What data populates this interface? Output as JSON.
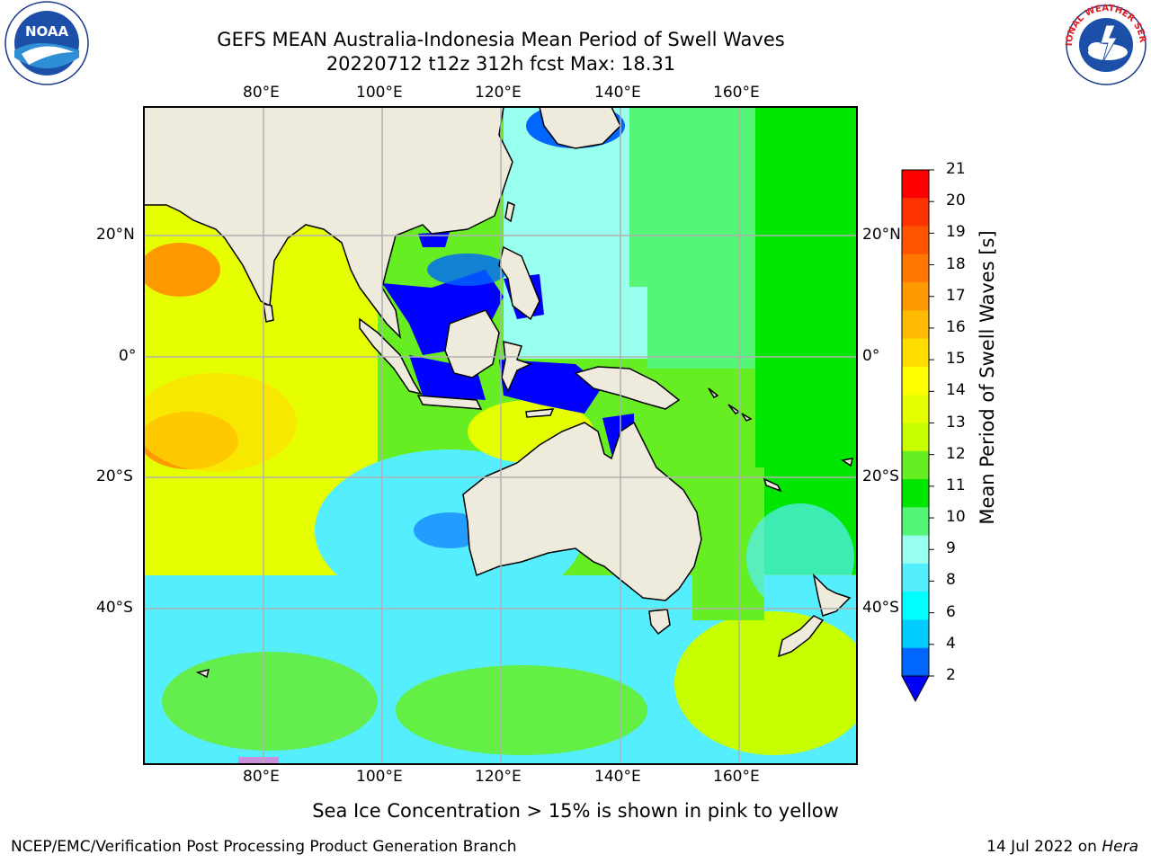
{
  "title": {
    "line1": "GEFS MEAN Australia-Indonesia Mean Period of Swell Waves",
    "line2": "20220712 t12z 312h fcst   Max: 18.31"
  },
  "logos": {
    "noaa": {
      "text": "NOAA",
      "icon": "noaa-logo-icon"
    },
    "nws": {
      "text": "NATIONAL WEATHER SERVICE",
      "icon": "nws-logo-icon"
    }
  },
  "map": {
    "lon_labels": [
      "80°E",
      "100°E",
      "120°E",
      "140°E",
      "160°E"
    ],
    "lat_labels": [
      "20°N",
      "0°",
      "20°S",
      "40°S"
    ],
    "colors": {
      "land": "#efebdc",
      "grid": "#b0b0b0",
      "border": "#000000"
    }
  },
  "colorbar": {
    "label": "Mean Period of Swell Waves [s]",
    "ticks": [
      "21",
      "20",
      "19",
      "18",
      "17",
      "16",
      "15",
      "14",
      "13",
      "12",
      "11",
      "10",
      "9",
      "8",
      "6",
      "4",
      "2"
    ],
    "colors_top_to_bottom": [
      "#ff0000",
      "#ff3300",
      "#ff5500",
      "#ff7700",
      "#ff9900",
      "#ffbb00",
      "#ffdd00",
      "#ffff00",
      "#e6ff00",
      "#c8ff00",
      "#66ee22",
      "#00e600",
      "#55f577",
      "#99ffee",
      "#55eeff",
      "#00ffff",
      "#00ccff",
      "#0066ff"
    ],
    "extend_color": "#0000ff"
  },
  "note": "Sea Ice Concentration > 15% is shown in pink to yellow",
  "footer": {
    "left": "NCEP/EMC/Verification Post Processing Product Generation Branch",
    "right_date": "14 Jul 2022 on",
    "right_host": "Hera"
  }
}
